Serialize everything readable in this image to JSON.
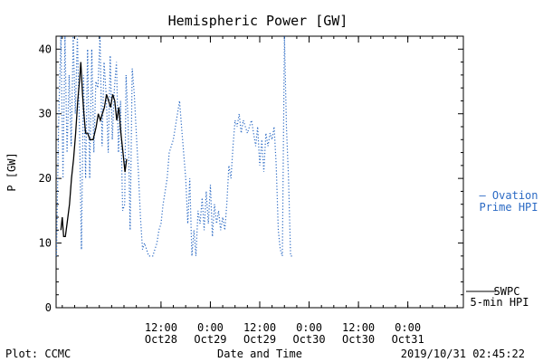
{
  "footer": {
    "left": "Plot: CCMC",
    "center": "Date and Time",
    "right": "2019/10/31 02:45:22"
  },
  "colors": {
    "ovation": "#2b6ac4",
    "swpc": "#000000",
    "axes": "#000000",
    "background": "#ffffff"
  },
  "chart_data": {
    "type": "line",
    "title": "Hemispheric Power [GW]",
    "xlabel": "",
    "ylabel": "P [GW]",
    "xlim": [
      "2019-10-27T10:30",
      "2019-10-31T13:30"
    ],
    "ylim": [
      0,
      42
    ],
    "yticks": [
      0,
      10,
      20,
      30,
      40
    ],
    "xticks": [
      {
        "t": "2019-10-28T12:00",
        "label": "12:00",
        "sublabel": "Oct28"
      },
      {
        "t": "2019-10-29T00:00",
        "label": "0:00",
        "sublabel": "Oct29"
      },
      {
        "t": "2019-10-29T12:00",
        "label": "12:00",
        "sublabel": "Oct29"
      },
      {
        "t": "2019-10-30T00:00",
        "label": "0:00",
        "sublabel": "Oct30"
      },
      {
        "t": "2019-10-30T12:00",
        "label": "12:00",
        "sublabel": "Oct30"
      },
      {
        "t": "2019-10-31T00:00",
        "label": "0:00",
        "sublabel": "Oct31"
      }
    ],
    "grid": false,
    "legend_position": "right",
    "series": [
      {
        "name": "SWPC 5-min HPI",
        "legend": [
          "SWPC",
          "5-min HPI"
        ],
        "style": "solid",
        "color": "#000000",
        "points": [
          [
            "2019-10-27T11:40",
            12
          ],
          [
            "2019-10-27T12:00",
            14
          ],
          [
            "2019-10-27T12:20",
            11
          ],
          [
            "2019-10-27T12:45",
            11
          ],
          [
            "2019-10-27T13:10",
            13
          ],
          [
            "2019-10-27T13:45",
            16
          ],
          [
            "2019-10-27T14:15",
            20
          ],
          [
            "2019-10-27T14:45",
            23
          ],
          [
            "2019-10-27T15:15",
            27
          ],
          [
            "2019-10-27T15:45",
            32
          ],
          [
            "2019-10-27T16:10",
            35
          ],
          [
            "2019-10-27T16:30",
            38
          ],
          [
            "2019-10-27T16:55",
            33
          ],
          [
            "2019-10-27T17:15",
            30
          ],
          [
            "2019-10-27T17:40",
            27
          ],
          [
            "2019-10-27T18:10",
            27
          ],
          [
            "2019-10-27T18:45",
            26
          ],
          [
            "2019-10-27T19:30",
            26
          ],
          [
            "2019-10-27T20:15",
            28
          ],
          [
            "2019-10-27T20:45",
            30
          ],
          [
            "2019-10-27T21:15",
            29
          ],
          [
            "2019-10-27T21:45",
            30
          ],
          [
            "2019-10-27T22:15",
            31
          ],
          [
            "2019-10-27T22:45",
            33
          ],
          [
            "2019-10-27T23:15",
            32
          ],
          [
            "2019-10-27T23:45",
            31
          ],
          [
            "2019-10-28T00:15",
            33
          ],
          [
            "2019-10-28T00:45",
            32
          ],
          [
            "2019-10-28T01:15",
            29
          ],
          [
            "2019-10-28T01:45",
            31
          ],
          [
            "2019-10-28T02:15",
            27
          ],
          [
            "2019-10-28T02:45",
            24
          ],
          [
            "2019-10-28T03:15",
            21
          ],
          [
            "2019-10-28T03:40",
            23
          ]
        ]
      },
      {
        "name": "Ovation Prime HPI",
        "legend": [
          "— Ovation",
          "Prime HPI"
        ],
        "style": "dotted",
        "color": "#2b6ac4",
        "points": [
          [
            "2019-10-27T10:35",
            8
          ],
          [
            "2019-10-27T11:10",
            30
          ],
          [
            "2019-10-27T11:40",
            42
          ],
          [
            "2019-10-27T12:10",
            20
          ],
          [
            "2019-10-27T12:40",
            42
          ],
          [
            "2019-10-27T13:10",
            24
          ],
          [
            "2019-10-27T13:40",
            36
          ],
          [
            "2019-10-27T14:10",
            25
          ],
          [
            "2019-10-27T14:40",
            42
          ],
          [
            "2019-10-27T15:10",
            30
          ],
          [
            "2019-10-27T15:40",
            42
          ],
          [
            "2019-10-27T16:10",
            28
          ],
          [
            "2019-10-27T16:40",
            9
          ],
          [
            "2019-10-27T17:10",
            36
          ],
          [
            "2019-10-27T17:40",
            20
          ],
          [
            "2019-10-27T18:10",
            40
          ],
          [
            "2019-10-27T18:40",
            20
          ],
          [
            "2019-10-27T19:10",
            40
          ],
          [
            "2019-10-27T19:40",
            24
          ],
          [
            "2019-10-27T20:10",
            35
          ],
          [
            "2019-10-27T20:40",
            34
          ],
          [
            "2019-10-27T21:10",
            42
          ],
          [
            "2019-10-27T21:40",
            25
          ],
          [
            "2019-10-27T22:10",
            38
          ],
          [
            "2019-10-27T22:40",
            33
          ],
          [
            "2019-10-27T23:10",
            24
          ],
          [
            "2019-10-27T23:40",
            39
          ],
          [
            "2019-10-28T00:10",
            26
          ],
          [
            "2019-10-28T00:40",
            34
          ],
          [
            "2019-10-28T01:10",
            38
          ],
          [
            "2019-10-28T01:40",
            24
          ],
          [
            "2019-10-28T02:10",
            32
          ],
          [
            "2019-10-28T02:40",
            15
          ],
          [
            "2019-10-28T03:10",
            16
          ],
          [
            "2019-10-28T03:30",
            36
          ],
          [
            "2019-10-28T04:00",
            29
          ],
          [
            "2019-10-28T04:30",
            12
          ],
          [
            "2019-10-28T05:00",
            37
          ],
          [
            "2019-10-28T05:30",
            33
          ],
          [
            "2019-10-28T06:00",
            27
          ],
          [
            "2019-10-28T06:30",
            21
          ],
          [
            "2019-10-28T07:00",
            14
          ],
          [
            "2019-10-28T07:30",
            9
          ],
          [
            "2019-10-28T08:00",
            10
          ],
          [
            "2019-10-28T08:30",
            9
          ],
          [
            "2019-10-28T09:00",
            8
          ],
          [
            "2019-10-28T09:30",
            8
          ],
          [
            "2019-10-28T10:00",
            8
          ],
          [
            "2019-10-28T10:30",
            9
          ],
          [
            "2019-10-28T11:00",
            10
          ],
          [
            "2019-10-28T11:30",
            12
          ],
          [
            "2019-10-28T12:00",
            13
          ],
          [
            "2019-10-28T12:30",
            16
          ],
          [
            "2019-10-28T13:00",
            18
          ],
          [
            "2019-10-28T13:30",
            20
          ],
          [
            "2019-10-28T14:00",
            24
          ],
          [
            "2019-10-28T14:30",
            25
          ],
          [
            "2019-10-28T15:00",
            26
          ],
          [
            "2019-10-28T15:30",
            28
          ],
          [
            "2019-10-28T16:00",
            30
          ],
          [
            "2019-10-28T16:30",
            32
          ],
          [
            "2019-10-28T17:00",
            28
          ],
          [
            "2019-10-28T17:30",
            24
          ],
          [
            "2019-10-28T18:00",
            20
          ],
          [
            "2019-10-28T18:30",
            13
          ],
          [
            "2019-10-28T19:00",
            20
          ],
          [
            "2019-10-28T19:30",
            8
          ],
          [
            "2019-10-28T20:00",
            12
          ],
          [
            "2019-10-28T20:30",
            8
          ],
          [
            "2019-10-28T21:00",
            15
          ],
          [
            "2019-10-28T21:30",
            13
          ],
          [
            "2019-10-28T22:00",
            17
          ],
          [
            "2019-10-28T22:30",
            12
          ],
          [
            "2019-10-28T23:00",
            18
          ],
          [
            "2019-10-28T23:30",
            13
          ],
          [
            "2019-10-29T00:00",
            19
          ],
          [
            "2019-10-29T00:30",
            11
          ],
          [
            "2019-10-29T01:00",
            16
          ],
          [
            "2019-10-29T01:30",
            13
          ],
          [
            "2019-10-29T02:00",
            15
          ],
          [
            "2019-10-29T02:30",
            12
          ],
          [
            "2019-10-29T03:00",
            14
          ],
          [
            "2019-10-29T03:30",
            12
          ],
          [
            "2019-10-29T04:00",
            16
          ],
          [
            "2019-10-29T04:30",
            22
          ],
          [
            "2019-10-29T05:00",
            20
          ],
          [
            "2019-10-29T05:30",
            25
          ],
          [
            "2019-10-29T06:00",
            29
          ],
          [
            "2019-10-29T06:30",
            28
          ],
          [
            "2019-10-29T07:00",
            30
          ],
          [
            "2019-10-29T07:30",
            27
          ],
          [
            "2019-10-29T08:00",
            29
          ],
          [
            "2019-10-29T08:30",
            28
          ],
          [
            "2019-10-29T09:00",
            27
          ],
          [
            "2019-10-29T09:30",
            28
          ],
          [
            "2019-10-29T10:00",
            29
          ],
          [
            "2019-10-29T10:30",
            27
          ],
          [
            "2019-10-29T11:00",
            25
          ],
          [
            "2019-10-29T11:30",
            28
          ],
          [
            "2019-10-29T12:00",
            22
          ],
          [
            "2019-10-29T12:30",
            26
          ],
          [
            "2019-10-29T13:00",
            21
          ],
          [
            "2019-10-29T13:30",
            27
          ],
          [
            "2019-10-29T14:00",
            25
          ],
          [
            "2019-10-29T14:30",
            27
          ],
          [
            "2019-10-29T15:00",
            26
          ],
          [
            "2019-10-29T15:30",
            28
          ],
          [
            "2019-10-29T16:00",
            22
          ],
          [
            "2019-10-29T16:30",
            12
          ],
          [
            "2019-10-29T17:00",
            9
          ],
          [
            "2019-10-29T17:30",
            8
          ],
          [
            "2019-10-29T18:00",
            42
          ],
          [
            "2019-10-29T18:30",
            28
          ],
          [
            "2019-10-29T19:00",
            20
          ],
          [
            "2019-10-29T19:30",
            8
          ],
          [
            "2019-10-29T20:00",
            8
          ]
        ]
      }
    ]
  }
}
